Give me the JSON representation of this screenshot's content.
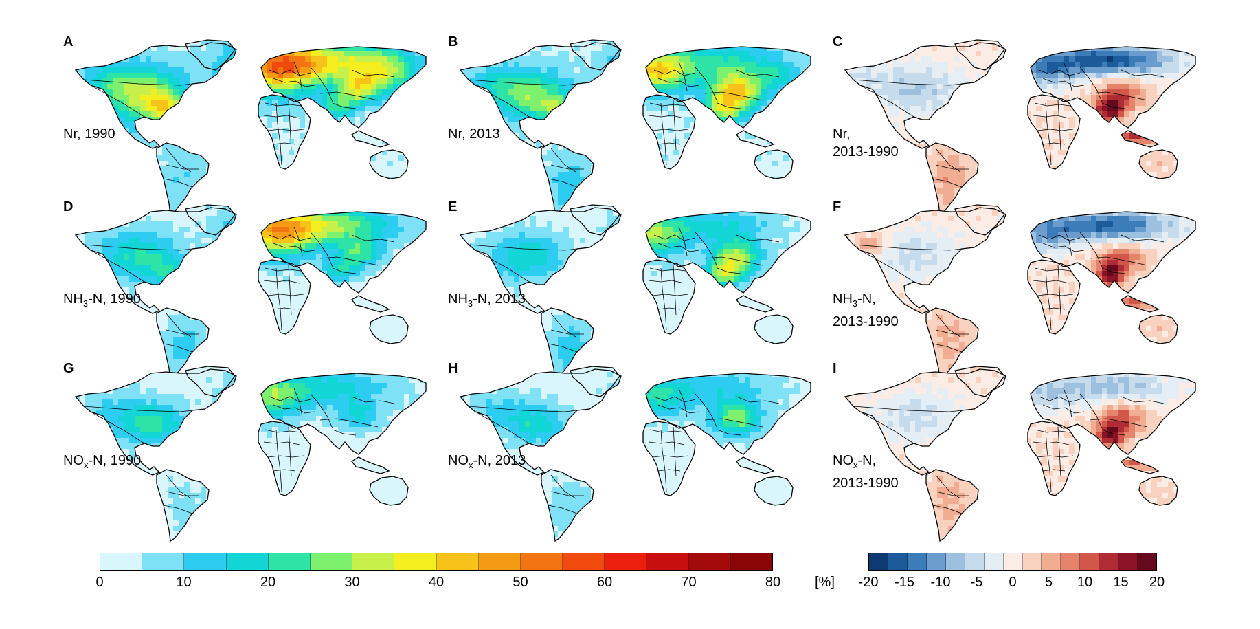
{
  "panels": [
    {
      "letter": "A",
      "label_main": "Nr, 1990",
      "label_sub": "",
      "label_rest": "",
      "label_line2": "",
      "kind": "abs",
      "scheme": "nr1990"
    },
    {
      "letter": "B",
      "label_main": "Nr, 2013",
      "label_sub": "",
      "label_rest": "",
      "label_line2": "",
      "kind": "abs",
      "scheme": "nr2013"
    },
    {
      "letter": "C",
      "label_main": "Nr,",
      "label_sub": "",
      "label_rest": "",
      "label_line2": "2013-1990",
      "kind": "diff",
      "scheme": "diff_nr"
    },
    {
      "letter": "D",
      "label_main": "NH",
      "label_sub": "3",
      "label_rest": "-N, 1990",
      "label_line2": "",
      "kind": "abs",
      "scheme": "nh1990"
    },
    {
      "letter": "E",
      "label_main": "NH",
      "label_sub": "3",
      "label_rest": "-N, 2013",
      "label_line2": "",
      "kind": "abs",
      "scheme": "nh2013"
    },
    {
      "letter": "F",
      "label_main": "NH",
      "label_sub": "3",
      "label_rest": "-N,",
      "label_line2": "2013-1990",
      "kind": "diff",
      "scheme": "diff_nh"
    },
    {
      "letter": "G",
      "label_main": "NO",
      "label_sub": "x",
      "label_rest": "-N, 1990",
      "label_line2": "",
      "kind": "abs",
      "scheme": "no1990"
    },
    {
      "letter": "H",
      "label_main": "NO",
      "label_sub": "x",
      "label_rest": "-N, 2013",
      "label_line2": "",
      "kind": "abs",
      "scheme": "no2013"
    },
    {
      "letter": "I",
      "label_main": "NO",
      "label_sub": "x",
      "label_rest": "-N,",
      "label_line2": "2013-1990",
      "kind": "diff",
      "scheme": "diff_no"
    }
  ],
  "colorbar_abs": {
    "ticks": [
      "0",
      "10",
      "20",
      "30",
      "40",
      "50",
      "60",
      "70",
      "80"
    ],
    "colors": [
      "#d8f6fb",
      "#7fe1f5",
      "#2ccdf0",
      "#12d6d6",
      "#2ee3a6",
      "#7df06e",
      "#c7f04a",
      "#f5ee1f",
      "#f7c21a",
      "#f49a14",
      "#f27412",
      "#f04a0f",
      "#ea1f0d",
      "#c80f0f",
      "#a30a0a",
      "#8a0606"
    ]
  },
  "colorbar_diff": {
    "unit": "[%]",
    "ticks": [
      "-20",
      "-15",
      "-10",
      "-5",
      "0",
      "5",
      "10",
      "15",
      "20"
    ],
    "colors": [
      "#0e3a73",
      "#1d5a99",
      "#3c7cb8",
      "#6a9dcd",
      "#9cc0de",
      "#c6dcec",
      "#e6eef5",
      "#fbede5",
      "#f8d2bf",
      "#f0ad92",
      "#e5846b",
      "#d1574b",
      "#b02c35",
      "#8a1327",
      "#650a1e"
    ]
  }
}
